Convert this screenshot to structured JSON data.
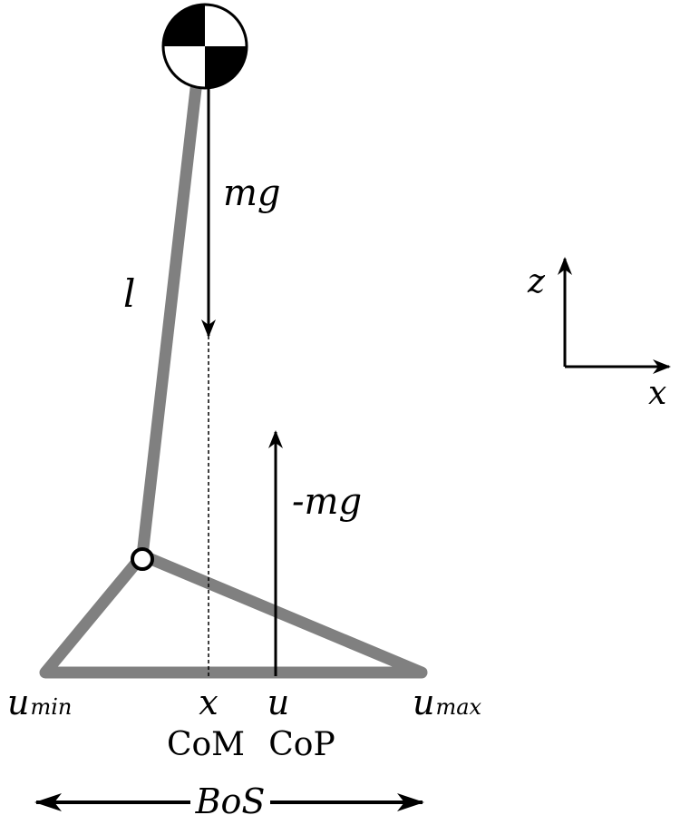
{
  "labels": {
    "weight": "mg",
    "reaction": "-mg",
    "length": "l",
    "axis_z": "z",
    "axis_x": "x",
    "com_symbol": "x",
    "com_name": "CoM",
    "cop_symbol": "u",
    "cop_name": "CoP",
    "umin_base": "u",
    "umin_sub": "min",
    "umax_base": "u",
    "umax_sub": "max",
    "bos": "BoS"
  },
  "colors": {
    "limb": "#808080",
    "ink": "#000000",
    "background": "#ffffff"
  },
  "icons": {
    "center_of_mass": "center-of-mass-symbol",
    "ankle_joint": "ankle-joint-circle"
  }
}
